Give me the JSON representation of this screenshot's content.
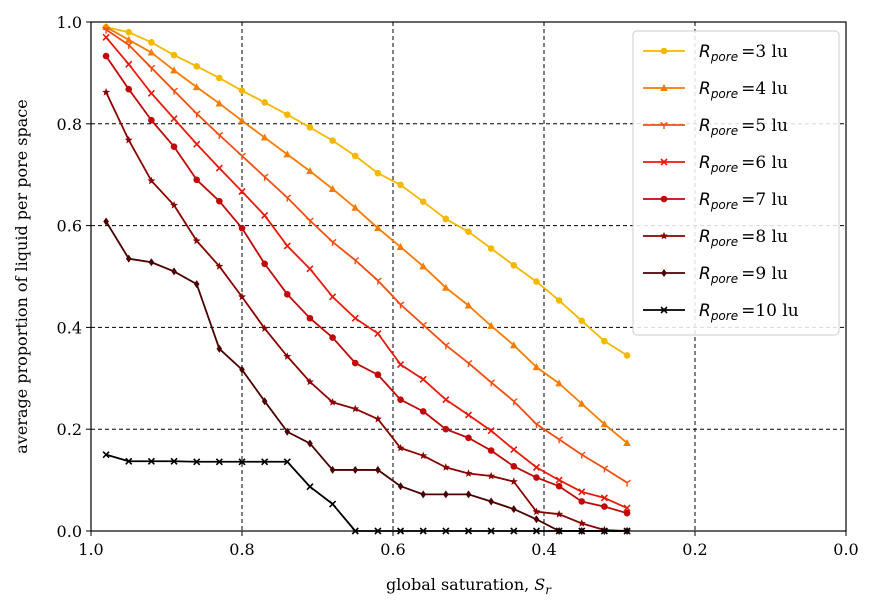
{
  "chart_data": {
    "type": "line",
    "title": "",
    "xlabel": "global saturation, ",
    "xlabel_symbol": "S",
    "xlabel_sub": "r",
    "ylabel": "average proportion of liquid per pore space",
    "xlim": [
      1.0,
      0.0
    ],
    "ylim": [
      0.0,
      1.0
    ],
    "xticks": [
      1.0,
      0.8,
      0.6,
      0.4,
      0.2,
      0.0
    ],
    "xtick_labels": [
      "1.0",
      "0.8",
      "0.6",
      "0.4",
      "0.2",
      "0.0"
    ],
    "yticks": [
      0.0,
      0.2,
      0.4,
      0.6,
      0.8,
      1.0
    ],
    "ytick_labels": [
      "0.0",
      "0.2",
      "0.4",
      "0.6",
      "0.8",
      "1.0"
    ],
    "grid": true,
    "legend_position": "top-right",
    "legend_symbol": "R",
    "legend_sub": "pore",
    "series": [
      {
        "name": "=3 lu",
        "color": "#f5b800",
        "marker": "circle",
        "x": [
          0.98,
          0.95,
          0.92,
          0.89,
          0.86,
          0.83,
          0.8,
          0.77,
          0.74,
          0.71,
          0.68,
          0.65,
          0.62,
          0.59,
          0.56,
          0.53,
          0.5,
          0.47,
          0.44,
          0.41,
          0.38,
          0.35,
          0.32,
          0.29
        ],
        "y": [
          0.99,
          0.98,
          0.96,
          0.935,
          0.913,
          0.89,
          0.865,
          0.842,
          0.818,
          0.793,
          0.767,
          0.737,
          0.703,
          0.68,
          0.647,
          0.613,
          0.588,
          0.555,
          0.522,
          0.49,
          0.453,
          0.413,
          0.373,
          0.345
        ]
      },
      {
        "name": "=4 lu",
        "color": "#f57c00",
        "marker": "triangle",
        "x": [
          0.98,
          0.95,
          0.92,
          0.89,
          0.86,
          0.83,
          0.8,
          0.77,
          0.74,
          0.71,
          0.68,
          0.65,
          0.62,
          0.59,
          0.56,
          0.53,
          0.5,
          0.47,
          0.44,
          0.41,
          0.38,
          0.35,
          0.32,
          0.29
        ],
        "y": [
          0.99,
          0.965,
          0.94,
          0.905,
          0.872,
          0.84,
          0.806,
          0.773,
          0.74,
          0.707,
          0.672,
          0.635,
          0.595,
          0.558,
          0.52,
          0.478,
          0.443,
          0.403,
          0.365,
          0.322,
          0.29,
          0.25,
          0.21,
          0.173
        ]
      },
      {
        "name": "=5 lu",
        "color": "#f04e10",
        "marker": "tri_down",
        "x": [
          0.98,
          0.95,
          0.92,
          0.89,
          0.86,
          0.83,
          0.8,
          0.77,
          0.74,
          0.71,
          0.68,
          0.65,
          0.62,
          0.59,
          0.56,
          0.53,
          0.5,
          0.47,
          0.44,
          0.41,
          0.38,
          0.35,
          0.32,
          0.29
        ],
        "y": [
          0.985,
          0.955,
          0.91,
          0.865,
          0.82,
          0.778,
          0.737,
          0.696,
          0.655,
          0.61,
          0.568,
          0.532,
          0.492,
          0.445,
          0.405,
          0.365,
          0.33,
          0.292,
          0.255,
          0.21,
          0.18,
          0.15,
          0.123,
          0.095
        ]
      },
      {
        "name": "=6 lu",
        "color": "#e81a0a",
        "marker": "x",
        "x": [
          0.98,
          0.95,
          0.92,
          0.89,
          0.86,
          0.83,
          0.8,
          0.77,
          0.74,
          0.71,
          0.68,
          0.65,
          0.62,
          0.59,
          0.56,
          0.53,
          0.5,
          0.47,
          0.44,
          0.41,
          0.38,
          0.35,
          0.32,
          0.29
        ],
        "y": [
          0.97,
          0.917,
          0.86,
          0.81,
          0.76,
          0.713,
          0.667,
          0.62,
          0.56,
          0.515,
          0.46,
          0.418,
          0.388,
          0.327,
          0.298,
          0.258,
          0.228,
          0.197,
          0.16,
          0.125,
          0.1,
          0.077,
          0.065,
          0.045
        ]
      },
      {
        "name": "=7 lu",
        "color": "#c00808",
        "marker": "circle",
        "x": [
          0.98,
          0.95,
          0.92,
          0.89,
          0.86,
          0.83,
          0.8,
          0.77,
          0.74,
          0.71,
          0.68,
          0.65,
          0.62,
          0.59,
          0.56,
          0.53,
          0.5,
          0.47,
          0.44,
          0.41,
          0.38,
          0.35,
          0.32,
          0.29
        ],
        "y": [
          0.933,
          0.868,
          0.807,
          0.755,
          0.69,
          0.648,
          0.595,
          0.525,
          0.465,
          0.418,
          0.38,
          0.33,
          0.307,
          0.258,
          0.235,
          0.2,
          0.183,
          0.158,
          0.127,
          0.105,
          0.088,
          0.058,
          0.048,
          0.035
        ]
      },
      {
        "name": "=8 lu",
        "color": "#8a0000",
        "marker": "star",
        "x": [
          0.98,
          0.95,
          0.92,
          0.89,
          0.86,
          0.83,
          0.8,
          0.77,
          0.74,
          0.71,
          0.68,
          0.65,
          0.62,
          0.59,
          0.56,
          0.53,
          0.5,
          0.47,
          0.44,
          0.41,
          0.38,
          0.35,
          0.32,
          0.29
        ],
        "y": [
          0.862,
          0.768,
          0.688,
          0.64,
          0.57,
          0.52,
          0.46,
          0.398,
          0.343,
          0.293,
          0.253,
          0.24,
          0.22,
          0.163,
          0.148,
          0.125,
          0.113,
          0.108,
          0.097,
          0.038,
          0.033,
          0.015,
          0.002,
          0.0
        ]
      },
      {
        "name": "=9 lu",
        "color": "#4a0000",
        "marker": "diamond",
        "x": [
          0.98,
          0.95,
          0.92,
          0.89,
          0.86,
          0.83,
          0.8,
          0.77,
          0.74,
          0.71,
          0.68,
          0.65,
          0.62,
          0.59,
          0.56,
          0.53,
          0.5,
          0.47,
          0.44,
          0.41,
          0.38,
          0.35,
          0.32,
          0.29
        ],
        "y": [
          0.608,
          0.535,
          0.528,
          0.51,
          0.485,
          0.358,
          0.317,
          0.255,
          0.195,
          0.172,
          0.12,
          0.12,
          0.12,
          0.088,
          0.072,
          0.072,
          0.072,
          0.058,
          0.043,
          0.023,
          0.0,
          0.0,
          0.0,
          0.0
        ]
      },
      {
        "name": "=10 lu",
        "color": "#000000",
        "marker": "x",
        "x": [
          0.98,
          0.95,
          0.92,
          0.89,
          0.86,
          0.83,
          0.8,
          0.77,
          0.74,
          0.71,
          0.68,
          0.65,
          0.62,
          0.59,
          0.56,
          0.53,
          0.5,
          0.47,
          0.44,
          0.41,
          0.38,
          0.35,
          0.32,
          0.29
        ],
        "y": [
          0.15,
          0.137,
          0.137,
          0.137,
          0.136,
          0.136,
          0.136,
          0.136,
          0.136,
          0.087,
          0.053,
          0.0,
          0.0,
          0.0,
          0.0,
          0.0,
          0.0,
          0.0,
          0.0,
          0.0,
          0.0,
          0.0,
          0.0,
          0.0
        ]
      }
    ]
  }
}
